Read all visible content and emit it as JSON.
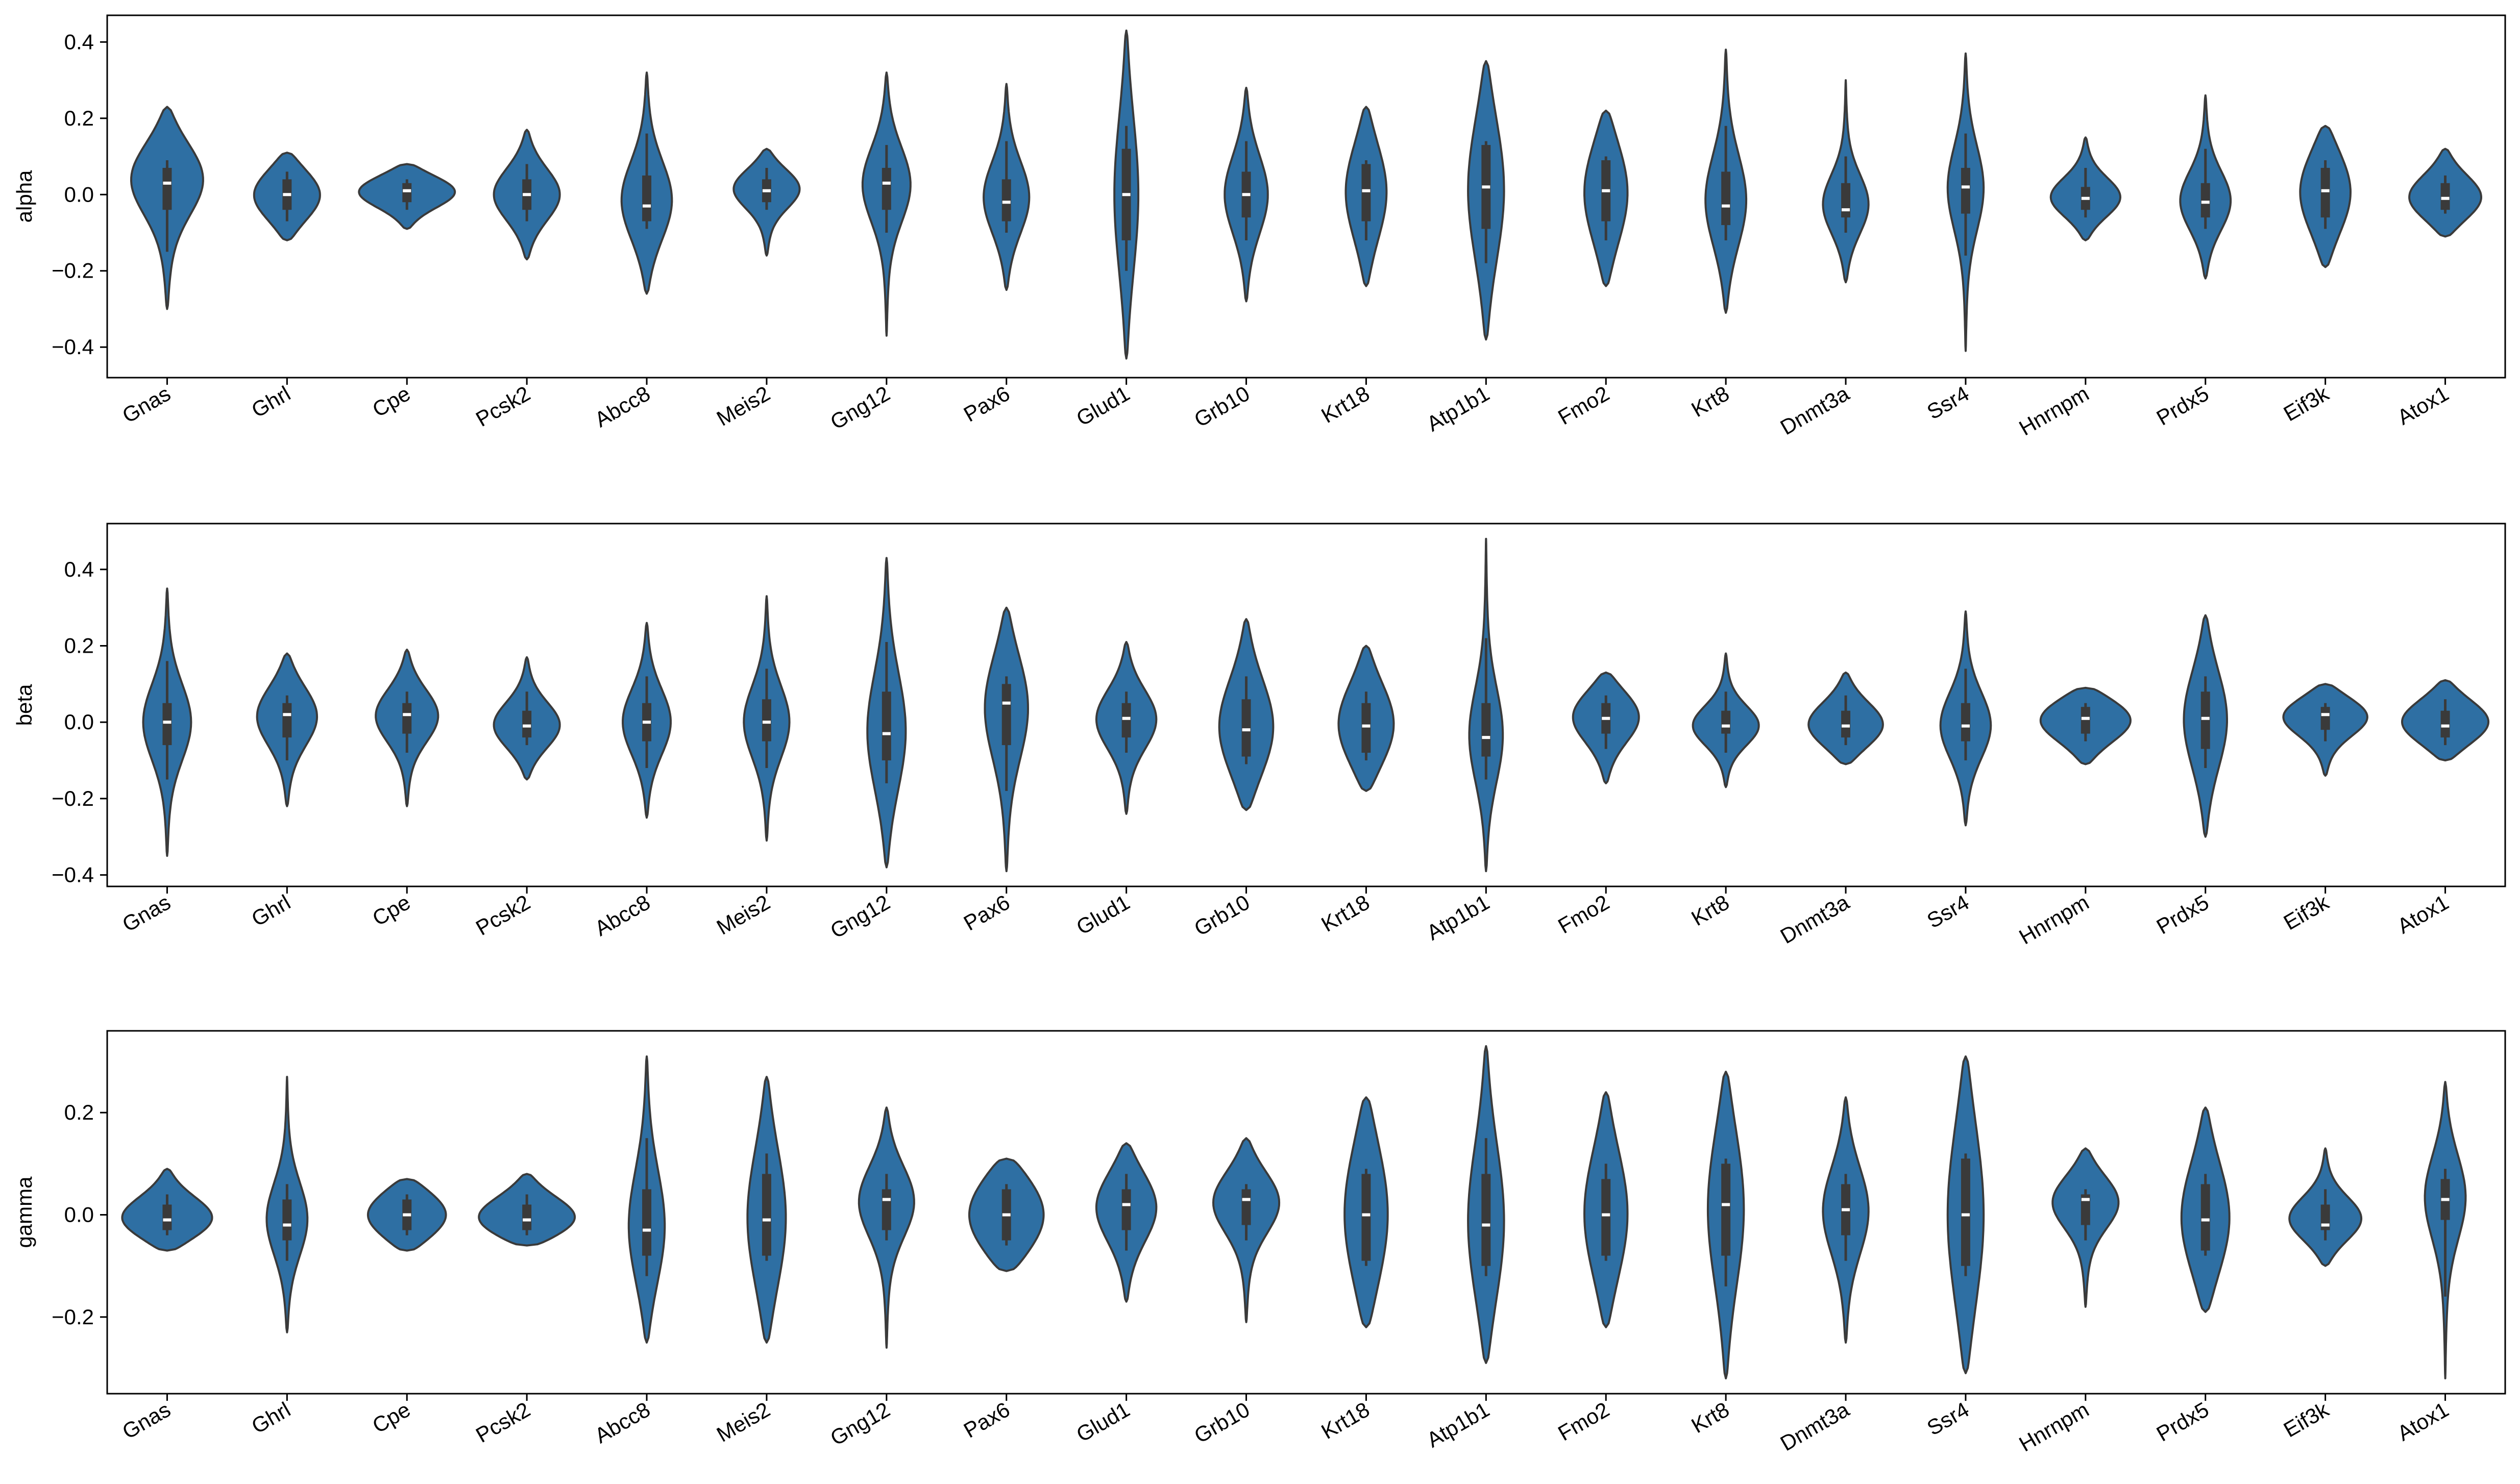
{
  "chart_data": [
    {
      "type": "violin",
      "ylabel": "alpha",
      "ylim": [
        -0.48,
        0.47
      ],
      "yticks": [
        -0.4,
        -0.2,
        0.0,
        0.2,
        0.4
      ],
      "categories": [
        "Gnas",
        "Ghrl",
        "Cpe",
        "Pcsk2",
        "Abcc8",
        "Meis2",
        "Gng12",
        "Pax6",
        "Glud1",
        "Grb10",
        "Krt18",
        "Atp1b1",
        "Fmo2",
        "Krt8",
        "Dnmt3a",
        "Ssr4",
        "Hnrnpm",
        "Prdx5",
        "Eif3k",
        "Atox1"
      ],
      "color": "#2e6fa3",
      "violins": [
        {
          "min": -0.3,
          "max": 0.23,
          "median": 0.03,
          "q1": -0.04,
          "q3": 0.07,
          "wlo": -0.15,
          "whi": 0.09,
          "width": 0.6,
          "peak": 0.05
        },
        {
          "min": -0.12,
          "max": 0.11,
          "median": 0.0,
          "q1": -0.04,
          "q3": 0.04,
          "wlo": -0.07,
          "whi": 0.06,
          "width": 0.55,
          "peak": 0.0
        },
        {
          "min": -0.09,
          "max": 0.08,
          "median": 0.01,
          "q1": -0.02,
          "q3": 0.03,
          "wlo": -0.04,
          "whi": 0.04,
          "width": 0.8,
          "peak": 0.01
        },
        {
          "min": -0.17,
          "max": 0.17,
          "median": 0.0,
          "q1": -0.04,
          "q3": 0.04,
          "wlo": -0.07,
          "whi": 0.08,
          "width": 0.55,
          "peak": 0.0
        },
        {
          "min": -0.26,
          "max": 0.32,
          "median": -0.03,
          "q1": -0.07,
          "q3": 0.05,
          "wlo": -0.09,
          "whi": 0.16,
          "width": 0.42,
          "peak": -0.02
        },
        {
          "min": -0.16,
          "max": 0.12,
          "median": 0.01,
          "q1": -0.02,
          "q3": 0.04,
          "wlo": -0.04,
          "whi": 0.07,
          "width": 0.55,
          "peak": 0.02
        },
        {
          "min": -0.37,
          "max": 0.32,
          "median": 0.03,
          "q1": -0.04,
          "q3": 0.07,
          "wlo": -0.1,
          "whi": 0.13,
          "width": 0.4,
          "peak": 0.03
        },
        {
          "min": -0.25,
          "max": 0.29,
          "median": -0.02,
          "q1": -0.07,
          "q3": 0.04,
          "wlo": -0.1,
          "whi": 0.14,
          "width": 0.38,
          "peak": -0.01
        },
        {
          "min": -0.43,
          "max": 0.43,
          "median": 0.0,
          "q1": -0.12,
          "q3": 0.12,
          "wlo": -0.2,
          "whi": 0.18,
          "width": 0.2,
          "peak": 0.0
        },
        {
          "min": -0.28,
          "max": 0.28,
          "median": 0.0,
          "q1": -0.06,
          "q3": 0.06,
          "wlo": -0.12,
          "whi": 0.14,
          "width": 0.36,
          "peak": 0.0
        },
        {
          "min": -0.24,
          "max": 0.23,
          "median": 0.01,
          "q1": -0.07,
          "q3": 0.08,
          "wlo": -0.12,
          "whi": 0.09,
          "width": 0.34,
          "peak": 0.01
        },
        {
          "min": -0.38,
          "max": 0.35,
          "median": 0.02,
          "q1": -0.09,
          "q3": 0.13,
          "wlo": -0.18,
          "whi": 0.14,
          "width": 0.3,
          "peak": 0.02
        },
        {
          "min": -0.24,
          "max": 0.22,
          "median": 0.01,
          "q1": -0.07,
          "q3": 0.09,
          "wlo": -0.12,
          "whi": 0.1,
          "width": 0.36,
          "peak": 0.01
        },
        {
          "min": -0.31,
          "max": 0.38,
          "median": -0.03,
          "q1": -0.08,
          "q3": 0.06,
          "wlo": -0.12,
          "whi": 0.18,
          "width": 0.34,
          "peak": -0.02
        },
        {
          "min": -0.23,
          "max": 0.3,
          "median": -0.04,
          "q1": -0.06,
          "q3": 0.03,
          "wlo": -0.1,
          "whi": 0.1,
          "width": 0.38,
          "peak": -0.03
        },
        {
          "min": -0.41,
          "max": 0.37,
          "median": 0.02,
          "q1": -0.05,
          "q3": 0.07,
          "wlo": -0.16,
          "whi": 0.16,
          "width": 0.3,
          "peak": 0.02
        },
        {
          "min": -0.12,
          "max": 0.15,
          "median": -0.01,
          "q1": -0.04,
          "q3": 0.02,
          "wlo": -0.06,
          "whi": 0.07,
          "width": 0.58,
          "peak": -0.01
        },
        {
          "min": -0.22,
          "max": 0.26,
          "median": -0.02,
          "q1": -0.06,
          "q3": 0.03,
          "wlo": -0.09,
          "whi": 0.12,
          "width": 0.42,
          "peak": -0.02
        },
        {
          "min": -0.19,
          "max": 0.18,
          "median": 0.01,
          "q1": -0.06,
          "q3": 0.07,
          "wlo": -0.09,
          "whi": 0.09,
          "width": 0.42,
          "peak": 0.01
        },
        {
          "min": -0.11,
          "max": 0.12,
          "median": -0.01,
          "q1": -0.04,
          "q3": 0.03,
          "wlo": -0.05,
          "whi": 0.05,
          "width": 0.6,
          "peak": -0.01
        }
      ]
    },
    {
      "type": "violin",
      "ylabel": "beta",
      "ylim": [
        -0.43,
        0.52
      ],
      "yticks": [
        -0.4,
        -0.2,
        0.0,
        0.2,
        0.4
      ],
      "categories": [
        "Gnas",
        "Ghrl",
        "Cpe",
        "Pcsk2",
        "Abcc8",
        "Meis2",
        "Gng12",
        "Pax6",
        "Glud1",
        "Grb10",
        "Krt18",
        "Atp1b1",
        "Fmo2",
        "Krt8",
        "Dnmt3a",
        "Ssr4",
        "Hnrnpm",
        "Prdx5",
        "Eif3k",
        "Atox1"
      ],
      "color": "#2e6fa3",
      "violins": [
        {
          "min": -0.35,
          "max": 0.35,
          "median": 0.0,
          "q1": -0.06,
          "q3": 0.05,
          "wlo": -0.15,
          "whi": 0.16,
          "width": 0.4,
          "peak": 0.0
        },
        {
          "min": -0.22,
          "max": 0.18,
          "median": 0.02,
          "q1": -0.04,
          "q3": 0.05,
          "wlo": -0.1,
          "whi": 0.07,
          "width": 0.5,
          "peak": 0.02
        },
        {
          "min": -0.22,
          "max": 0.19,
          "median": 0.02,
          "q1": -0.03,
          "q3": 0.05,
          "wlo": -0.08,
          "whi": 0.08,
          "width": 0.52,
          "peak": 0.02
        },
        {
          "min": -0.15,
          "max": 0.17,
          "median": -0.01,
          "q1": -0.04,
          "q3": 0.03,
          "wlo": -0.06,
          "whi": 0.08,
          "width": 0.55,
          "peak": -0.01
        },
        {
          "min": -0.25,
          "max": 0.26,
          "median": 0.0,
          "q1": -0.05,
          "q3": 0.05,
          "wlo": -0.12,
          "whi": 0.12,
          "width": 0.4,
          "peak": 0.0
        },
        {
          "min": -0.31,
          "max": 0.33,
          "median": 0.0,
          "q1": -0.05,
          "q3": 0.06,
          "wlo": -0.12,
          "whi": 0.14,
          "width": 0.38,
          "peak": 0.0
        },
        {
          "min": -0.38,
          "max": 0.43,
          "median": -0.03,
          "q1": -0.1,
          "q3": 0.08,
          "wlo": -0.16,
          "whi": 0.21,
          "width": 0.32,
          "peak": -0.03
        },
        {
          "min": -0.39,
          "max": 0.3,
          "median": 0.05,
          "q1": -0.06,
          "q3": 0.1,
          "wlo": -0.18,
          "whi": 0.12,
          "width": 0.36,
          "peak": 0.05
        },
        {
          "min": -0.24,
          "max": 0.21,
          "median": 0.01,
          "q1": -0.04,
          "q3": 0.05,
          "wlo": -0.08,
          "whi": 0.08,
          "width": 0.5,
          "peak": 0.01
        },
        {
          "min": -0.23,
          "max": 0.27,
          "median": -0.02,
          "q1": -0.09,
          "q3": 0.06,
          "wlo": -0.11,
          "whi": 0.12,
          "width": 0.45,
          "peak": -0.02
        },
        {
          "min": -0.18,
          "max": 0.2,
          "median": -0.01,
          "q1": -0.08,
          "q3": 0.05,
          "wlo": -0.1,
          "whi": 0.08,
          "width": 0.46,
          "peak": -0.01
        },
        {
          "min": -0.39,
          "max": 0.48,
          "median": -0.04,
          "q1": -0.09,
          "q3": 0.05,
          "wlo": -0.15,
          "whi": 0.22,
          "width": 0.28,
          "peak": -0.04
        },
        {
          "min": -0.16,
          "max": 0.13,
          "median": 0.01,
          "q1": -0.03,
          "q3": 0.05,
          "wlo": -0.07,
          "whi": 0.07,
          "width": 0.55,
          "peak": 0.02
        },
        {
          "min": -0.17,
          "max": 0.18,
          "median": -0.01,
          "q1": -0.03,
          "q3": 0.03,
          "wlo": -0.08,
          "whi": 0.08,
          "width": 0.55,
          "peak": -0.01
        },
        {
          "min": -0.11,
          "max": 0.13,
          "median": -0.01,
          "q1": -0.04,
          "q3": 0.03,
          "wlo": -0.06,
          "whi": 0.07,
          "width": 0.62,
          "peak": -0.01
        },
        {
          "min": -0.27,
          "max": 0.29,
          "median": -0.01,
          "q1": -0.05,
          "q3": 0.05,
          "wlo": -0.1,
          "whi": 0.14,
          "width": 0.42,
          "peak": -0.01
        },
        {
          "min": -0.11,
          "max": 0.09,
          "median": 0.01,
          "q1": -0.03,
          "q3": 0.04,
          "wlo": -0.05,
          "whi": 0.05,
          "width": 0.75,
          "peak": 0.01
        },
        {
          "min": -0.3,
          "max": 0.28,
          "median": 0.01,
          "q1": -0.07,
          "q3": 0.08,
          "wlo": -0.12,
          "whi": 0.12,
          "width": 0.36,
          "peak": 0.01
        },
        {
          "min": -0.14,
          "max": 0.1,
          "median": 0.02,
          "q1": -0.02,
          "q3": 0.04,
          "wlo": -0.05,
          "whi": 0.05,
          "width": 0.7,
          "peak": 0.02
        },
        {
          "min": -0.1,
          "max": 0.11,
          "median": -0.01,
          "q1": -0.04,
          "q3": 0.03,
          "wlo": -0.06,
          "whi": 0.06,
          "width": 0.72,
          "peak": 0.0
        }
      ]
    },
    {
      "type": "violin",
      "ylabel": "gamma",
      "ylim": [
        -0.35,
        0.36
      ],
      "yticks": [
        -0.2,
        0.0,
        0.2
      ],
      "categories": [
        "Gnas",
        "Ghrl",
        "Cpe",
        "Pcsk2",
        "Abcc8",
        "Meis2",
        "Gng12",
        "Pax6",
        "Glud1",
        "Grb10",
        "Krt18",
        "Atp1b1",
        "Fmo2",
        "Krt8",
        "Dnmt3a",
        "Ssr4",
        "Hnrnpm",
        "Prdx5",
        "Eif3k",
        "Atox1"
      ],
      "color": "#2e6fa3",
      "violins": [
        {
          "min": -0.07,
          "max": 0.09,
          "median": -0.01,
          "q1": -0.03,
          "q3": 0.02,
          "wlo": -0.04,
          "whi": 0.04,
          "width": 0.75,
          "peak": -0.01
        },
        {
          "min": -0.23,
          "max": 0.27,
          "median": -0.02,
          "q1": -0.05,
          "q3": 0.03,
          "wlo": -0.09,
          "whi": 0.06,
          "width": 0.34,
          "peak": -0.01
        },
        {
          "min": -0.07,
          "max": 0.07,
          "median": 0.0,
          "q1": -0.03,
          "q3": 0.03,
          "wlo": -0.04,
          "whi": 0.04,
          "width": 0.65,
          "peak": 0.0
        },
        {
          "min": -0.06,
          "max": 0.08,
          "median": -0.01,
          "q1": -0.03,
          "q3": 0.02,
          "wlo": -0.04,
          "whi": 0.04,
          "width": 0.8,
          "peak": -0.01
        },
        {
          "min": -0.25,
          "max": 0.31,
          "median": -0.03,
          "q1": -0.08,
          "q3": 0.05,
          "wlo": -0.12,
          "whi": 0.15,
          "width": 0.3,
          "peak": -0.03
        },
        {
          "min": -0.25,
          "max": 0.27,
          "median": -0.01,
          "q1": -0.08,
          "q3": 0.08,
          "wlo": -0.09,
          "whi": 0.12,
          "width": 0.32,
          "peak": -0.01
        },
        {
          "min": -0.26,
          "max": 0.21,
          "median": 0.03,
          "q1": -0.03,
          "q3": 0.05,
          "wlo": -0.05,
          "whi": 0.08,
          "width": 0.46,
          "peak": 0.03
        },
        {
          "min": -0.11,
          "max": 0.11,
          "median": 0.0,
          "q1": -0.05,
          "q3": 0.05,
          "wlo": -0.06,
          "whi": 0.06,
          "width": 0.62,
          "peak": 0.0
        },
        {
          "min": -0.17,
          "max": 0.14,
          "median": 0.02,
          "q1": -0.03,
          "q3": 0.05,
          "wlo": -0.07,
          "whi": 0.08,
          "width": 0.5,
          "peak": 0.02
        },
        {
          "min": -0.21,
          "max": 0.15,
          "median": 0.03,
          "q1": -0.02,
          "q3": 0.05,
          "wlo": -0.05,
          "whi": 0.06,
          "width": 0.55,
          "peak": 0.03
        },
        {
          "min": -0.22,
          "max": 0.23,
          "median": 0.0,
          "q1": -0.09,
          "q3": 0.08,
          "wlo": -0.1,
          "whi": 0.09,
          "width": 0.36,
          "peak": 0.0
        },
        {
          "min": -0.29,
          "max": 0.33,
          "median": -0.02,
          "q1": -0.1,
          "q3": 0.08,
          "wlo": -0.12,
          "whi": 0.15,
          "width": 0.3,
          "peak": -0.02
        },
        {
          "min": -0.22,
          "max": 0.24,
          "median": 0.0,
          "q1": -0.08,
          "q3": 0.07,
          "wlo": -0.09,
          "whi": 0.1,
          "width": 0.36,
          "peak": 0.0
        },
        {
          "min": -0.32,
          "max": 0.28,
          "median": 0.02,
          "q1": -0.08,
          "q3": 0.1,
          "wlo": -0.14,
          "whi": 0.11,
          "width": 0.3,
          "peak": 0.02
        },
        {
          "min": -0.25,
          "max": 0.23,
          "median": 0.01,
          "q1": -0.04,
          "q3": 0.06,
          "wlo": -0.09,
          "whi": 0.08,
          "width": 0.38,
          "peak": 0.01
        },
        {
          "min": -0.31,
          "max": 0.31,
          "median": 0.0,
          "q1": -0.1,
          "q3": 0.11,
          "wlo": -0.12,
          "whi": 0.12,
          "width": 0.3,
          "peak": 0.0
        },
        {
          "min": -0.18,
          "max": 0.13,
          "median": 0.03,
          "q1": -0.02,
          "q3": 0.04,
          "wlo": -0.05,
          "whi": 0.05,
          "width": 0.55,
          "peak": 0.03
        },
        {
          "min": -0.19,
          "max": 0.21,
          "median": -0.01,
          "q1": -0.07,
          "q3": 0.06,
          "wlo": -0.08,
          "whi": 0.08,
          "width": 0.4,
          "peak": -0.01
        },
        {
          "min": -0.1,
          "max": 0.13,
          "median": -0.02,
          "q1": -0.03,
          "q3": 0.02,
          "wlo": -0.05,
          "whi": 0.05,
          "width": 0.6,
          "peak": -0.01
        },
        {
          "min": -0.32,
          "max": 0.26,
          "median": 0.03,
          "q1": -0.01,
          "q3": 0.07,
          "wlo": -0.16,
          "whi": 0.09,
          "width": 0.34,
          "peak": 0.04
        }
      ]
    }
  ]
}
